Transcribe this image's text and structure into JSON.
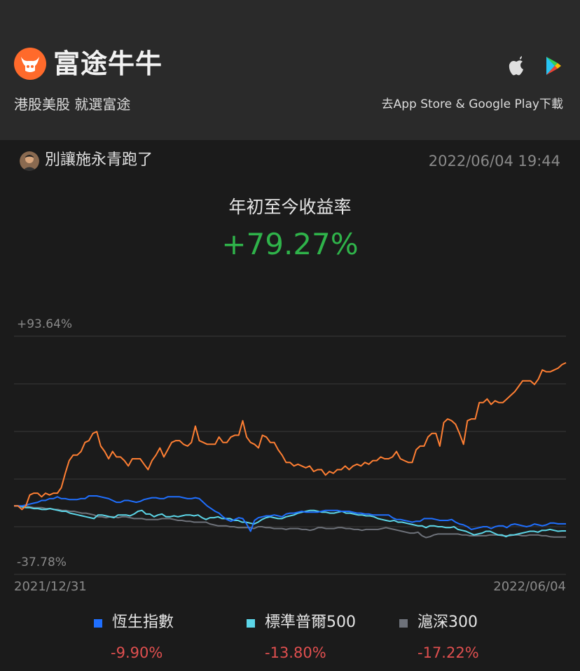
{
  "header": {
    "brand": "富途牛牛",
    "slogan": "港股美股 就選富途",
    "download_text": "去App Store & Google Play下載",
    "icons": [
      "futu-logo-icon",
      "apple-icon",
      "google-play-icon"
    ]
  },
  "post": {
    "username": "別讓施永青跑了",
    "timestamp": "2022/06/04 19:44"
  },
  "metric": {
    "label": "年初至今收益率",
    "value": "+79.27%"
  },
  "colors": {
    "portfolio": "#ff7f33",
    "hsi": "#1f6fff",
    "sp500": "#5cd6e8",
    "csi300": "#6e727a",
    "positive": "#2fb34a",
    "negative": "#e04f4f"
  },
  "chart_data": {
    "type": "line",
    "y_max_label": "+93.64%",
    "y_min_label": "-37.78%",
    "ylim": [
      -37.78,
      93.64
    ],
    "x_start_label": "2021/12/31",
    "x_end_label": "2022/06/04",
    "grid": true,
    "legend_placement": "bottom",
    "series": [
      {
        "name": "portfolio",
        "color": "#ff7f33",
        "values": [
          0,
          0,
          -2,
          0,
          6,
          7,
          7,
          5,
          7,
          6,
          7,
          7,
          10,
          18,
          25,
          28,
          28,
          30,
          35,
          36,
          40,
          41,
          33,
          30,
          26,
          30,
          27,
          27,
          25,
          22,
          26,
          26,
          26,
          23,
          20,
          25,
          28,
          32,
          27,
          31,
          35,
          36,
          36,
          34,
          33,
          35,
          44,
          36,
          35,
          34,
          34,
          34,
          38,
          35,
          35,
          38,
          39,
          39,
          47,
          38,
          35,
          34,
          32,
          39,
          38,
          35,
          35,
          31,
          28,
          24,
          24,
          22,
          23,
          22,
          21,
          22,
          19,
          20,
          20,
          17,
          19,
          18,
          20,
          20,
          22,
          20,
          22,
          23,
          22,
          24,
          23,
          25,
          25,
          27,
          26,
          26,
          27,
          30,
          26,
          25,
          24,
          24,
          31,
          33,
          33,
          38,
          40,
          40,
          33,
          46,
          48,
          47,
          45,
          40,
          34,
          47,
          48,
          48,
          57,
          57,
          59,
          56,
          58,
          57,
          57,
          59,
          61,
          63,
          66,
          69,
          69,
          69,
          67,
          70,
          75,
          74,
          74,
          75,
          76,
          78,
          79
        ]
      },
      {
        "name": "恆生指數",
        "color": "#1f6fff",
        "values": [
          0,
          0,
          0,
          0.5,
          1,
          1.5,
          2,
          3,
          3,
          4,
          4,
          5,
          4,
          4,
          3.5,
          3.5,
          3.5,
          4,
          4,
          5.5,
          5.5,
          5.5,
          5,
          4.5,
          4,
          3,
          2,
          2,
          3,
          3,
          2.5,
          2,
          2.5,
          3.5,
          4,
          4.5,
          4.5,
          4,
          4,
          5,
          5,
          5,
          5,
          4.5,
          4,
          4,
          4.5,
          4,
          2,
          0,
          -1.5,
          -3,
          -4,
          -6,
          -7.5,
          -8.5,
          -7.5,
          -6.5,
          -7,
          -10,
          -14,
          -8,
          -6.5,
          -6,
          -5.5,
          -5.5,
          -5,
          -5.5,
          -6,
          -4.5,
          -4,
          -4,
          -3.5,
          -3,
          -3.5,
          -3.5,
          -3.5,
          -3.5,
          -3,
          -2.5,
          -2.5,
          -2.5,
          -2.5,
          -3,
          -3,
          -3,
          -3.5,
          -4,
          -4,
          -4.5,
          -4.5,
          -5,
          -5,
          -5,
          -5,
          -5,
          -6.5,
          -7.5,
          -7.5,
          -8,
          -8.5,
          -9,
          -8.5,
          -8.5,
          -7,
          -7,
          -7,
          -7.5,
          -8,
          -8,
          -8,
          -7.5,
          -9,
          -10,
          -10.5,
          -11.5,
          -13,
          -12.5,
          -12,
          -11.5,
          -11.5,
          -12.5,
          -11.5,
          -11,
          -11,
          -12,
          -10.5,
          -10,
          -10.5,
          -11,
          -11.5,
          -11,
          -10,
          -10.5,
          -11,
          -10.5,
          -9.5,
          -9.5,
          -9.9,
          -9.9,
          -9.9
        ]
      },
      {
        "name": "標準普爾500",
        "color": "#5cd6e8",
        "values": [
          0,
          0,
          -0.5,
          -1,
          -1,
          -1.5,
          -1.5,
          -2,
          -2,
          -1.5,
          -2,
          -2.5,
          -3,
          -3,
          -4,
          -4.5,
          -5,
          -5.5,
          -6,
          -6.5,
          -7,
          -5,
          -5,
          -5.5,
          -6,
          -6.5,
          -5,
          -5,
          -5,
          -5.5,
          -4.5,
          -3,
          -2.5,
          -4.5,
          -4.5,
          -6,
          -5,
          -4.5,
          -6,
          -6,
          -5.5,
          -6,
          -5.5,
          -5,
          -5,
          -5.5,
          -5,
          -6.5,
          -7.5,
          -6.5,
          -6.5,
          -6,
          -7,
          -7,
          -7,
          -8,
          -8,
          -9,
          -9,
          -9.5,
          -10,
          -9,
          -7.5,
          -6.5,
          -6,
          -6.5,
          -7,
          -7,
          -6,
          -5.5,
          -5,
          -4,
          -3.5,
          -3,
          -2.5,
          -2.5,
          -3,
          -3.5,
          -3.5,
          -4,
          -4,
          -3.5,
          -3,
          -4,
          -4,
          -4.5,
          -5,
          -5,
          -5.5,
          -5.5,
          -6,
          -7,
          -7.5,
          -8,
          -8.5,
          -8,
          -9,
          -9,
          -9.5,
          -10,
          -10.5,
          -11,
          -11,
          -12,
          -11,
          -11,
          -11.5,
          -11.5,
          -12,
          -12,
          -11.5,
          -13,
          -13.5,
          -14,
          -15,
          -16,
          -15.5,
          -15,
          -14,
          -14,
          -15,
          -16,
          -16,
          -17,
          -16,
          -16,
          -15.5,
          -15,
          -14.5,
          -14,
          -14,
          -14.5,
          -13.5,
          -13.5,
          -13,
          -13.5,
          -14,
          -13.8,
          -13.8
        ]
      },
      {
        "name": "滬深300",
        "color": "#6e727a",
        "values": [
          0,
          0,
          0,
          0,
          -0.5,
          -1,
          -1,
          -1,
          -1.5,
          -1.5,
          -2,
          -2,
          -2.5,
          -2.5,
          -3,
          -3,
          -3.5,
          -4,
          -4,
          -4.5,
          -5,
          -6,
          -6,
          -6.5,
          -6,
          -6,
          -6.5,
          -6,
          -6,
          -6.5,
          -7,
          -7,
          -7,
          -7.5,
          -7.5,
          -7.5,
          -7.5,
          -7,
          -7,
          -7,
          -7.5,
          -8,
          -8,
          -8.5,
          -8.5,
          -9,
          -9,
          -9,
          -9,
          -10,
          -10.5,
          -11,
          -11,
          -11,
          -11.5,
          -11.5,
          -12,
          -12,
          -12,
          -12,
          -12.5,
          -11.5,
          -11.5,
          -12,
          -12,
          -12.5,
          -12.5,
          -12.5,
          -13,
          -12.5,
          -12.5,
          -12.5,
          -13,
          -13,
          -13.5,
          -13,
          -12,
          -12,
          -12.5,
          -12.5,
          -12.5,
          -12,
          -12,
          -12.5,
          -12.5,
          -13,
          -13,
          -13.5,
          -13,
          -13,
          -13,
          -13,
          -12.5,
          -12,
          -12.5,
          -13,
          -13.5,
          -14,
          -14.5,
          -15,
          -15,
          -14.5,
          -16.5,
          -17.5,
          -17,
          -16,
          -15.5,
          -15.5,
          -15.5,
          -15.5,
          -15.5,
          -15.5,
          -16,
          -16,
          -16.5,
          -16.5,
          -16.5,
          -16.5,
          -16.5,
          -16,
          -16,
          -16,
          -16.5,
          -16.5,
          -16.5,
          -16,
          -16,
          -16.5,
          -16.5,
          -16,
          -16,
          -16,
          -16.5,
          -16.5,
          -17,
          -17.22,
          -17.22,
          -17.22,
          -17.22
        ]
      }
    ]
  },
  "legend": [
    {
      "name": "恆生指數",
      "value": "-9.90%",
      "color": "#1f6fff"
    },
    {
      "name": "標準普爾500",
      "value": "-13.80%",
      "color": "#5cd6e8"
    },
    {
      "name": "滬深300",
      "value": "-17.22%",
      "color": "#6e727a"
    }
  ]
}
